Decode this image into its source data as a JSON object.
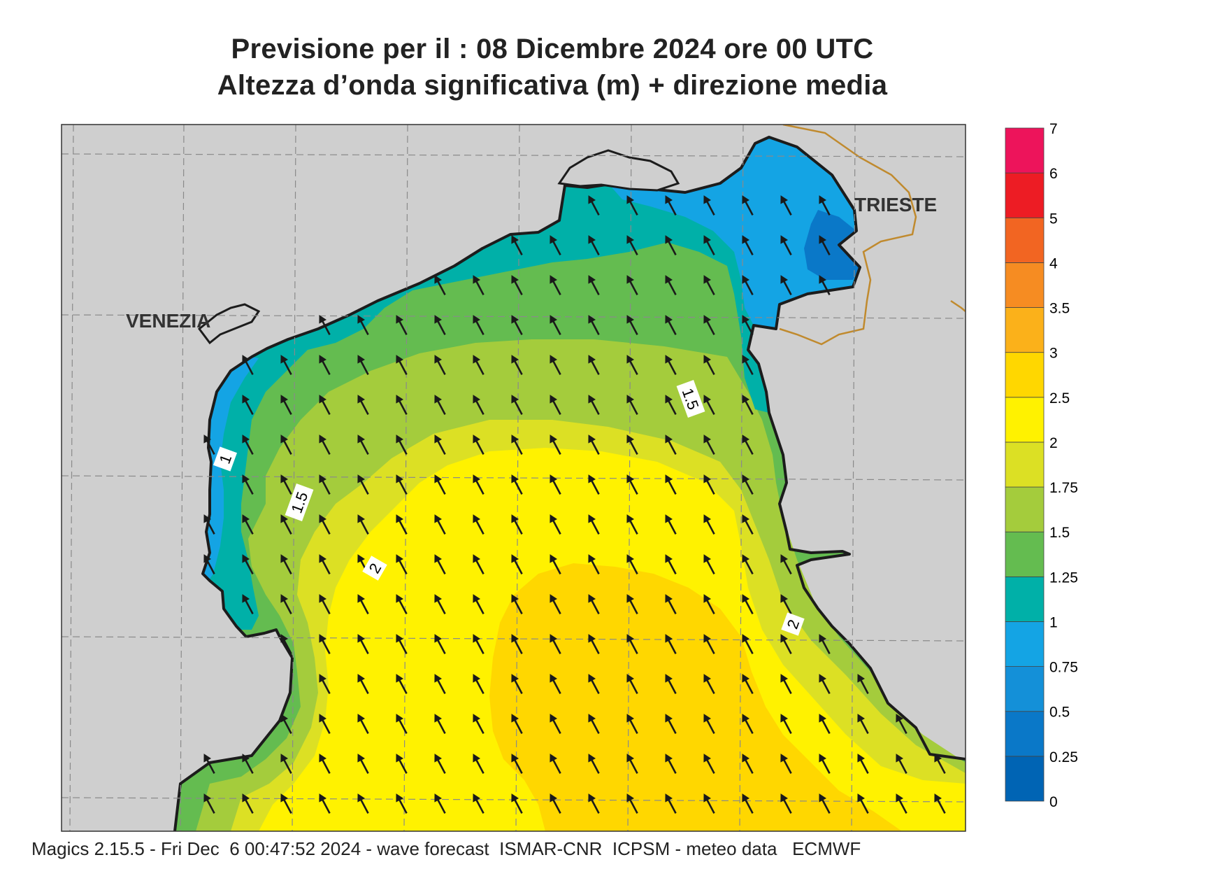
{
  "header": {
    "title_line1": "Previsione per il  :  08 Dicembre  2024   ore 00 UTC",
    "title_line2": "Altezza d’onda significativa (m) + direzione media"
  },
  "map": {
    "city_labels": [
      "VENEZIA",
      "TRIESTE"
    ],
    "contour_labels": [
      "1",
      "1.5",
      "1.5",
      "2",
      "2"
    ],
    "mean_wave_direction": "towards north-north-west",
    "colors": {
      "land": "#cfcfcf",
      "coast": "#1c1c1c",
      "border": "#c08a2e",
      "arrow": "#1a1a1a"
    }
  },
  "legend": {
    "levels": [
      "0",
      "0.25",
      "0.5",
      "0.75",
      "1",
      "1.25",
      "1.5",
      "1.75",
      "2",
      "2.5",
      "3",
      "3.5",
      "4",
      "5",
      "6",
      "7"
    ],
    "colors": [
      "#0064b4",
      "#0a78c8",
      "#1490d8",
      "#14a4e4",
      "#00b0a8",
      "#64bc50",
      "#a4cc3c",
      "#dce024",
      "#fff200",
      "#ffd700",
      "#fbb11a",
      "#f68c22",
      "#f26522",
      "#ed1c24",
      "#ed145b"
    ]
  },
  "footer": {
    "text": "Magics 2.15.5 - Fri Dec  6 00:47:52 2024 - wave forecast  ISMAR-CNR  ICPSM - meteo data   ECMWF"
  }
}
